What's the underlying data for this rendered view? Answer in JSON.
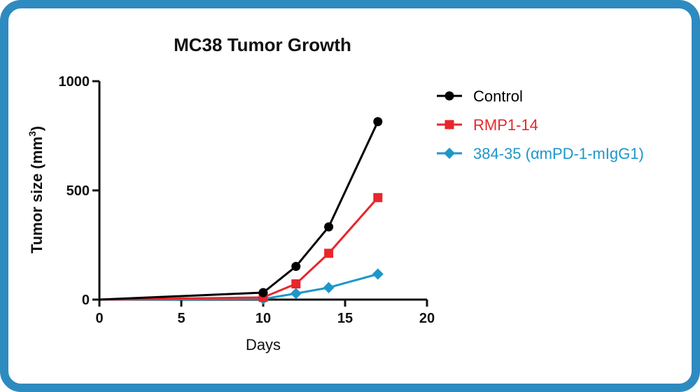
{
  "chart_data": {
    "type": "line",
    "title": "MC38 Tumor Growth",
    "xlabel": "Days",
    "ylabel_main": "Tumor size (mm",
    "ylabel_sup": "3",
    "ylabel_end": ")",
    "xlim": [
      0,
      20
    ],
    "ylim": [
      0,
      1000
    ],
    "x_ticks": [
      0,
      5,
      10,
      15,
      20
    ],
    "y_ticks": [
      0,
      500,
      1000
    ],
    "x_tick_labels": [
      "0",
      "5",
      "10",
      "15",
      "20"
    ],
    "y_tick_labels": [
      "0",
      "500",
      "1000"
    ],
    "grid": false,
    "legend_position": "right",
    "series": [
      {
        "name": "Control",
        "color": "#000000",
        "marker": "circle",
        "x": [
          0,
          10,
          12,
          14,
          17
        ],
        "y": [
          0,
          32,
          152,
          333,
          815
        ]
      },
      {
        "name": "RMP1-14",
        "color": "#E8262B",
        "marker": "square",
        "x": [
          0,
          10,
          12,
          14,
          17
        ],
        "y": [
          0,
          10,
          72,
          212,
          467
        ]
      },
      {
        "name": "384-35 (αmPD-1-mIgG1)",
        "color": "#1D97C9",
        "marker": "diamond",
        "x": [
          0,
          10,
          12,
          14,
          17
        ],
        "y": [
          0,
          3,
          28,
          55,
          117
        ]
      }
    ]
  }
}
